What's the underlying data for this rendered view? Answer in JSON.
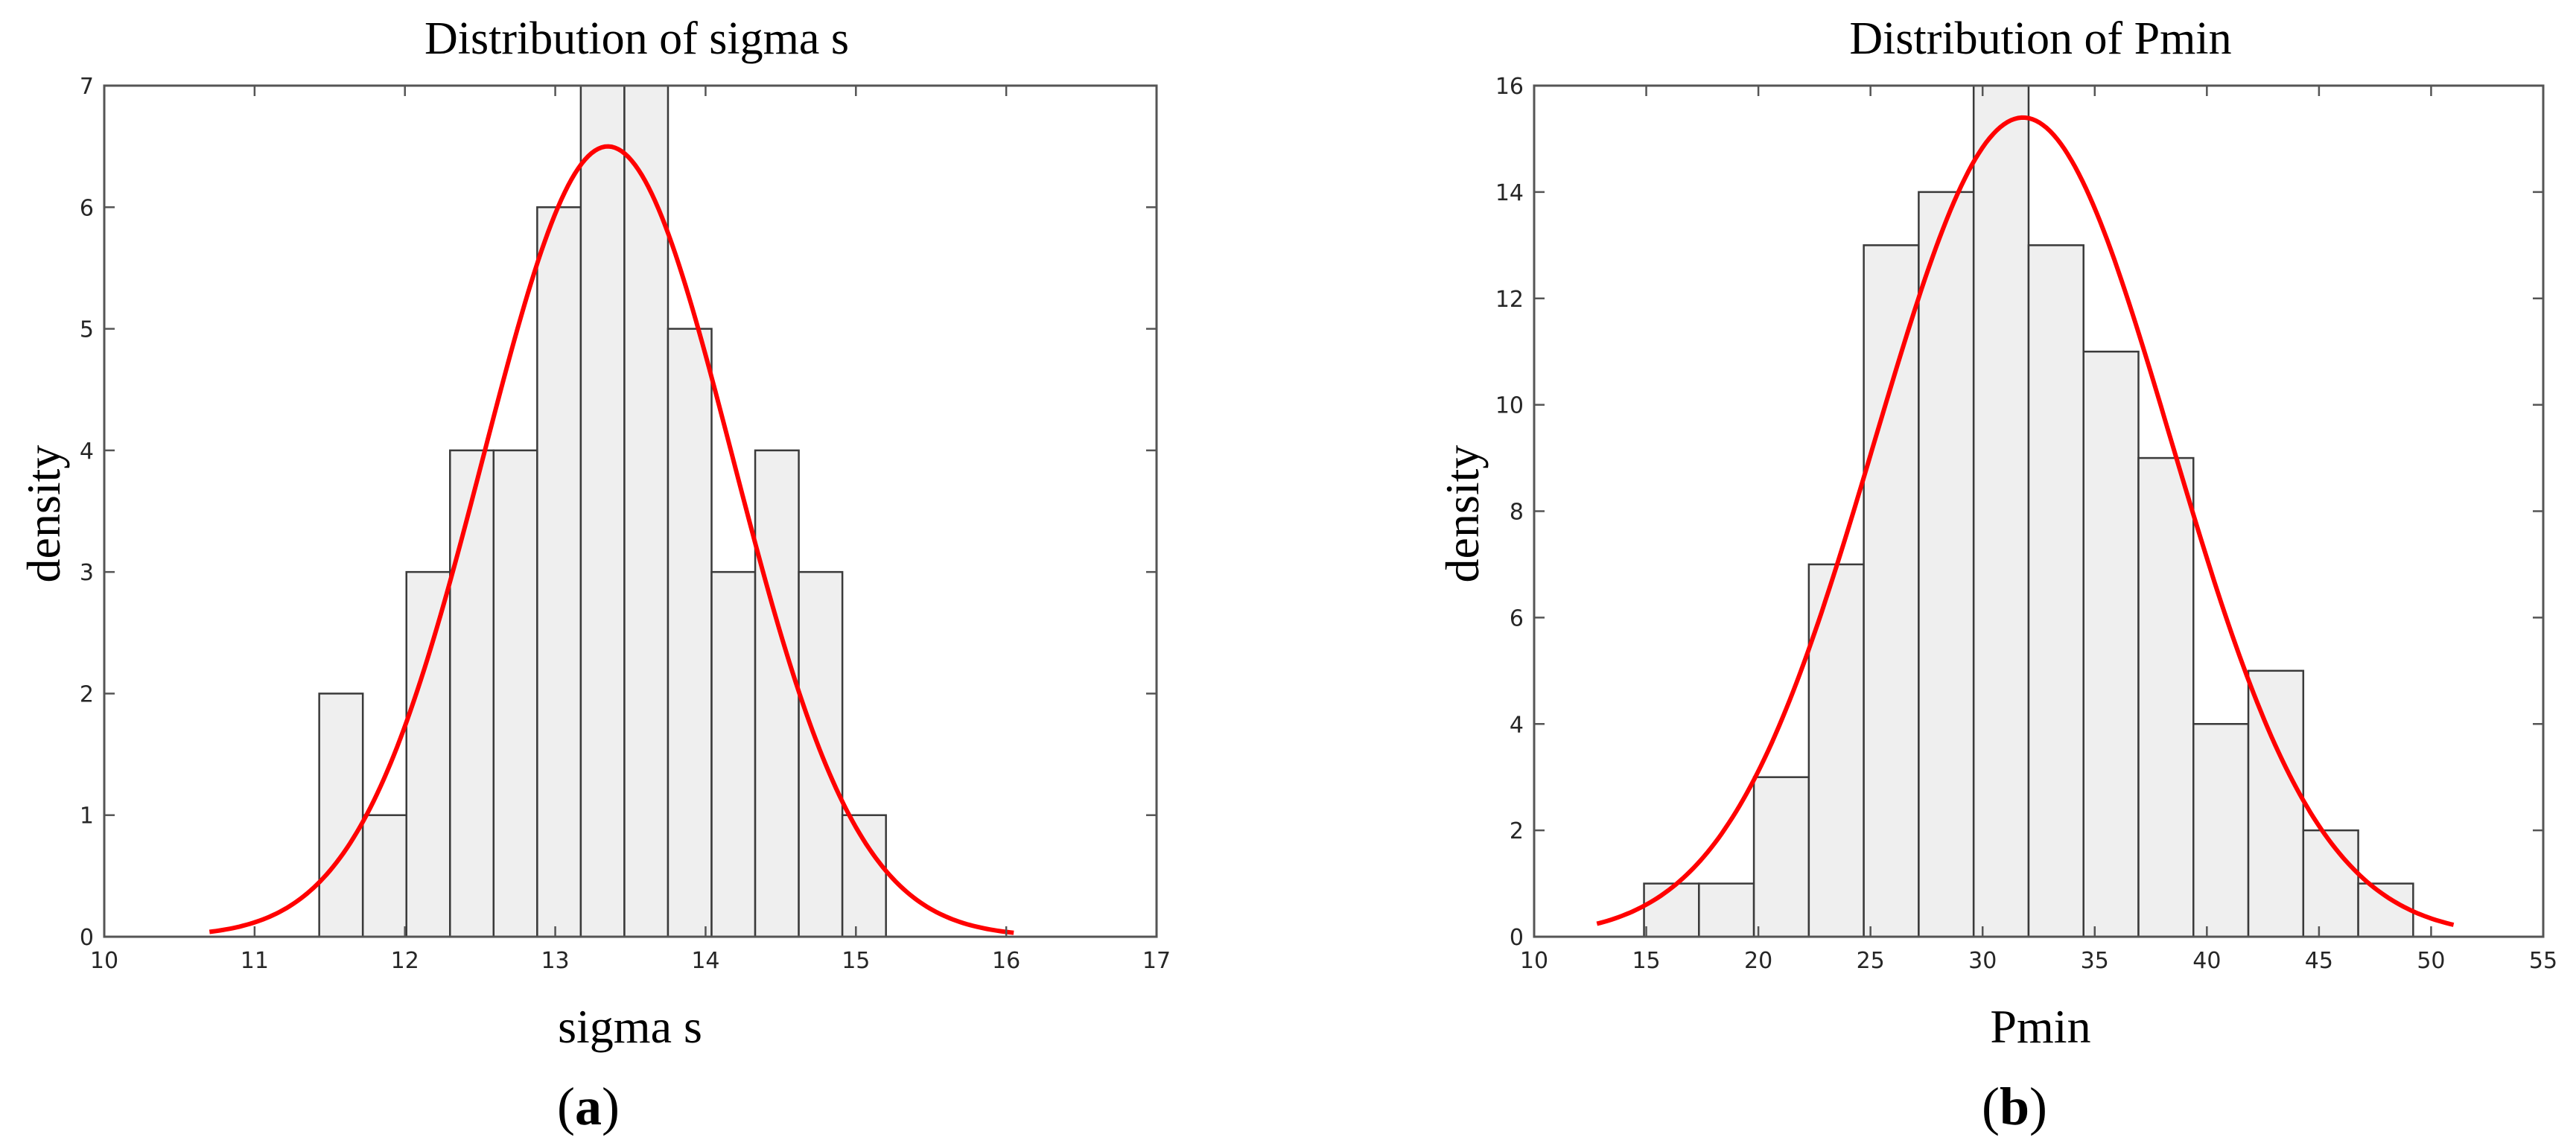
{
  "figure": {
    "panels": [
      "a",
      "b"
    ]
  },
  "chart_data": [
    {
      "type": "bar",
      "subtype": "histogram-with-normal-fit",
      "title": "Distribution of sigma s",
      "xlabel": "sigma s",
      "ylabel": "density",
      "panel_label": "a",
      "xlim": [
        10,
        17
      ],
      "ylim": [
        0,
        7
      ],
      "xticks": [
        10,
        11,
        12,
        13,
        14,
        15,
        16,
        17
      ],
      "yticks": [
        0,
        1,
        2,
        3,
        4,
        5,
        6,
        7
      ],
      "bin_edges": [
        11.43,
        11.72,
        12.01,
        12.3,
        12.59,
        12.88,
        13.17,
        13.46,
        13.75,
        14.04,
        14.33,
        14.62,
        14.91,
        15.2
      ],
      "counts": [
        2,
        1,
        3,
        4,
        4,
        6,
        7,
        7,
        5,
        3,
        4,
        3,
        1
      ],
      "bar_color": "#efefef",
      "edge_color": "#3a3a3a",
      "fit": {
        "kind": "normal",
        "mean": 13.35,
        "peak": 6.5,
        "sd": 0.83,
        "x_range": [
          10.7,
          16.05
        ],
        "color": "#ff0000"
      },
      "grid": false
    },
    {
      "type": "bar",
      "subtype": "histogram-with-normal-fit",
      "title": "Distribution of Pmin",
      "xlabel": "Pmin",
      "ylabel": "density",
      "panel_label": "b",
      "xlim": [
        10,
        55
      ],
      "ylim": [
        0,
        16
      ],
      "xticks": [
        10,
        15,
        20,
        25,
        30,
        35,
        40,
        45,
        50,
        55
      ],
      "yticks": [
        0,
        2,
        4,
        6,
        8,
        10,
        12,
        14,
        16
      ],
      "bin_edges": [
        14.9,
        17.35,
        19.8,
        22.25,
        24.7,
        27.15,
        29.6,
        32.05,
        34.5,
        36.95,
        39.4,
        41.85,
        44.3,
        46.75,
        49.2
      ],
      "counts": [
        1,
        1,
        3,
        7,
        13,
        14,
        16,
        13,
        11,
        9,
        4,
        5,
        2,
        1
      ],
      "bar_color": "#efefef",
      "edge_color": "#3a3a3a",
      "fit": {
        "kind": "normal",
        "mean": 31.8,
        "peak": 15.4,
        "sd": 6.6,
        "x_range": [
          12.8,
          51.0
        ],
        "color": "#ff0000"
      },
      "grid": false
    }
  ]
}
